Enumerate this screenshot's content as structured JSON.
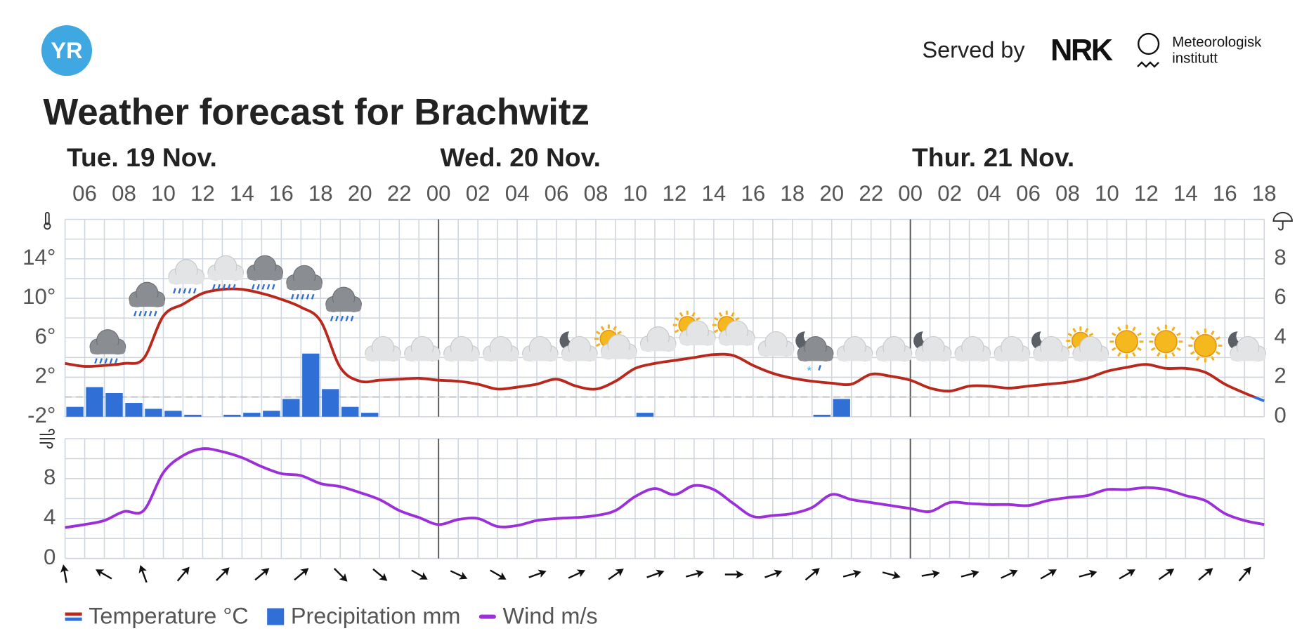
{
  "header": {
    "logo": "YR",
    "served_by": "Served by",
    "nrk": "NRK",
    "met": [
      "Meteorologisk",
      "institutt"
    ]
  },
  "chart_data": [
    {
      "type": "line",
      "title": "Weather forecast for Brachwitz",
      "days": [
        "Tue. 19 Nov.",
        "Wed. 20 Nov.",
        "Thur. 21 Nov."
      ],
      "categories": [
        null,
        "06",
        null,
        "08",
        null,
        "10",
        null,
        "12",
        null,
        "14",
        null,
        "16",
        null,
        "18",
        null,
        "20",
        null,
        "22",
        null,
        "00",
        null,
        "02",
        null,
        "04",
        null,
        "06",
        null,
        "08",
        null,
        "10",
        null,
        "12",
        null,
        "14",
        null,
        "16",
        null,
        "18",
        null,
        "20",
        null,
        "22",
        null,
        "00",
        null,
        "02",
        null,
        "04",
        null,
        "06",
        null,
        "08",
        null,
        "10",
        null,
        "12",
        null,
        "14",
        null,
        "16",
        null,
        "18"
      ],
      "ylim": [
        -2,
        18
      ],
      "yticks": [
        {
          "value": -2,
          "label": "-2°"
        },
        {
          "value": 2,
          "label": "2°"
        },
        {
          "value": 6,
          "label": "6°"
        },
        {
          "value": 10,
          "label": "10°"
        },
        {
          "value": 14,
          "label": "14°"
        }
      ],
      "y2lim": [
        0,
        10
      ],
      "y2ticks": [
        0,
        2,
        4,
        6,
        8
      ],
      "grid": true,
      "series": [
        {
          "name": "Temperature °C",
          "type": "line",
          "color": "#b8281d",
          "negative_color": "#2f6fd6",
          "values": [
            3.4,
            3.1,
            3.2,
            3.4,
            3.9,
            8.2,
            9.4,
            10.5,
            10.9,
            10.9,
            10.5,
            9.9,
            9.1,
            7.7,
            3.0,
            1.6,
            1.7,
            1.8,
            1.9,
            1.7,
            1.6,
            1.3,
            0.8,
            1.0,
            1.3,
            1.8,
            1.1,
            0.8,
            1.6,
            2.9,
            3.4,
            3.7,
            4.0,
            4.3,
            4.2,
            3.2,
            2.4,
            1.9,
            1.6,
            1.4,
            1.3,
            2.3,
            2.1,
            1.7,
            0.9,
            0.6,
            1.1,
            1.1,
            0.9,
            1.1,
            1.3,
            1.5,
            1.9,
            2.6,
            3.0,
            3.3,
            2.9,
            2.9,
            2.5,
            1.3,
            0.4,
            -0.4
          ]
        },
        {
          "name": "Precipitation mm",
          "type": "bar",
          "axis": "y2",
          "color": "#2f6fd6",
          "values": [
            0.5,
            1.5,
            1.2,
            0.7,
            0.4,
            0.3,
            0.1,
            0,
            0.1,
            0.2,
            0.3,
            0.9,
            3.2,
            1.4,
            0.5,
            0.2,
            0,
            0,
            0,
            0,
            0,
            0,
            0,
            0,
            0,
            0,
            0,
            0,
            0,
            0.2,
            0,
            0,
            0,
            0,
            0,
            0,
            0,
            0,
            0.1,
            0.9,
            0,
            0,
            0,
            0,
            0,
            0,
            0,
            0,
            0,
            0,
            0,
            0,
            0,
            0,
            0,
            0,
            0,
            0,
            0,
            0,
            0,
            null
          ]
        }
      ]
    },
    {
      "type": "line",
      "ylim": [
        0,
        12
      ],
      "yticks": [
        0,
        4,
        8
      ],
      "grid": true,
      "series": [
        {
          "name": "Wind m/s",
          "color": "#9b30d9",
          "values": [
            3.1,
            3.4,
            3.8,
            4.7,
            4.8,
            8.6,
            10.3,
            11.0,
            10.7,
            10.1,
            9.2,
            8.5,
            8.3,
            7.5,
            7.2,
            6.6,
            5.9,
            4.8,
            4.1,
            3.4,
            3.9,
            4.0,
            3.2,
            3.3,
            3.8,
            4.0,
            4.1,
            4.3,
            4.8,
            6.2,
            7.0,
            6.4,
            7.3,
            6.9,
            5.5,
            4.2,
            4.3,
            4.5,
            5.1,
            6.4,
            5.9,
            5.6,
            5.3,
            5.0,
            4.7,
            5.6,
            5.5,
            5.4,
            5.4,
            5.3,
            5.8,
            6.1,
            6.3,
            6.9,
            6.9,
            7.1,
            6.9,
            6.3,
            5.8,
            4.5,
            3.8,
            3.4
          ]
        }
      ],
      "wind_directions": [
        -10,
        null,
        -60,
        null,
        -20,
        null,
        40,
        null,
        45,
        null,
        50,
        null,
        50,
        null,
        135,
        null,
        130,
        null,
        120,
        null,
        115,
        null,
        120,
        null,
        70,
        null,
        65,
        null,
        55,
        null,
        70,
        null,
        75,
        null,
        90,
        null,
        70,
        null,
        50,
        null,
        75,
        null,
        105,
        null,
        80,
        null,
        75,
        null,
        65,
        null,
        60,
        null,
        75,
        null,
        60,
        null,
        55,
        null,
        50,
        null,
        40,
        null
      ]
    }
  ]
}
